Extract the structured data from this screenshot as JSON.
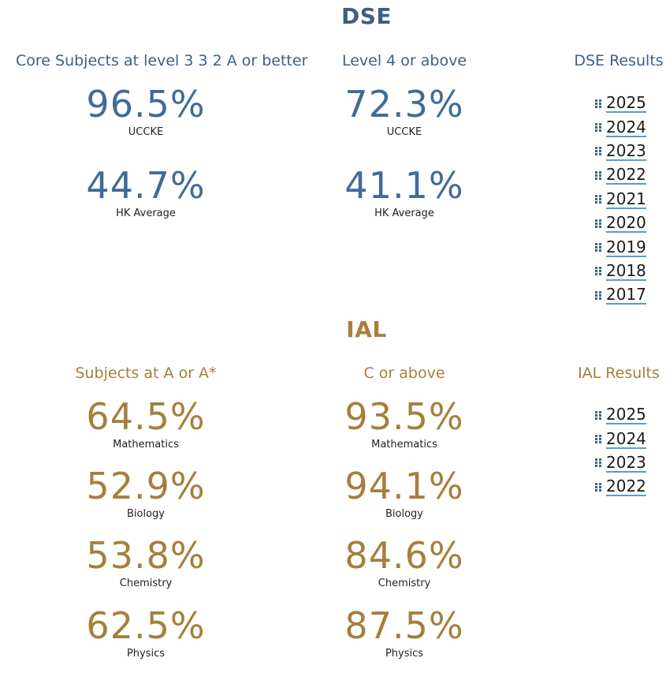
{
  "dse": {
    "title": "DSE",
    "col1_heading": "Core Subjects at level 3 3 2 A or better",
    "col2_heading": "Level 4 or above",
    "results_heading": "DSE Results",
    "col1_stats": [
      {
        "value": "96.5%",
        "label": "UCCKE"
      },
      {
        "value": "44.7%",
        "label": "HK Average"
      }
    ],
    "col2_stats": [
      {
        "value": "72.3%",
        "label": "UCCKE"
      },
      {
        "value": "41.1%",
        "label": "HK Average"
      }
    ],
    "years": [
      "2025",
      "2024",
      "2023",
      "2022",
      "2021",
      "2020",
      "2019",
      "2018",
      "2017"
    ]
  },
  "ial": {
    "title": "IAL",
    "col1_heading": "Subjects at A or A*",
    "col2_heading": "C or above",
    "results_heading": "IAL Results",
    "col1_stats": [
      {
        "value": "64.5%",
        "label": "Mathematics"
      },
      {
        "value": "52.9%",
        "label": "Biology"
      },
      {
        "value": "53.8%",
        "label": "Chemistry"
      },
      {
        "value": "62.5%",
        "label": "Physics"
      }
    ],
    "col2_stats": [
      {
        "value": "93.5%",
        "label": "Mathematics"
      },
      {
        "value": "94.1%",
        "label": "Biology"
      },
      {
        "value": "84.6%",
        "label": "Chemistry"
      },
      {
        "value": "87.5%",
        "label": "Physics"
      }
    ],
    "years": [
      "2025",
      "2024",
      "2023",
      "2022"
    ]
  },
  "colors": {
    "dse_heading": "#3d5f86",
    "dse_numbers": "#3f6b98",
    "ial": "#a57f3b",
    "link_underline": "#5a9bd6"
  }
}
